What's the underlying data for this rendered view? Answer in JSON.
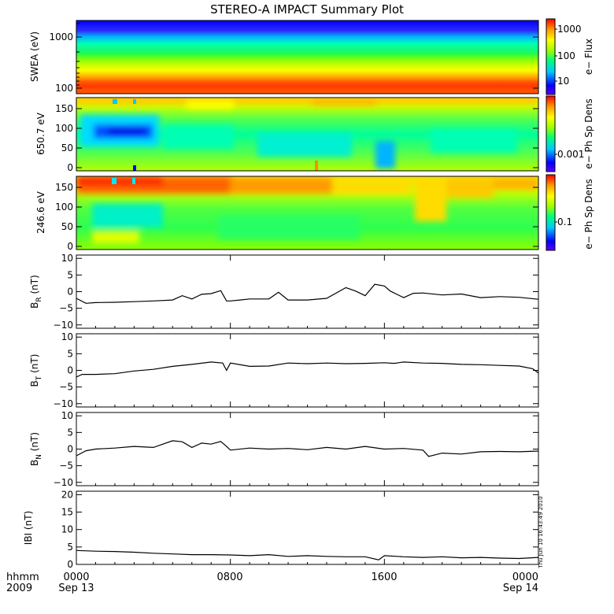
{
  "title": "STEREO-A IMPACT Summary Plot",
  "timestamp": "Thu Jun 10 16:43:49 2010",
  "x_axis": {
    "row1": [
      "hhmm",
      "0000",
      "0800",
      "1600",
      "0000"
    ],
    "row2": [
      "2009",
      "Sep 13",
      "Sep 14"
    ]
  },
  "panels": {
    "swea": {
      "ylabel": "SWEA (eV)",
      "yticks": [
        "1000",
        "100"
      ],
      "colorbar_label": "e− Flux",
      "colorbar_ticks": [
        "1000",
        "100",
        "10"
      ]
    },
    "pa650": {
      "ylabel": "650.7 eV",
      "yticks": [
        "150",
        "100",
        "50",
        "0"
      ],
      "colorbar_label": "e− Ph Sp Dens",
      "colorbar_ticks": [
        "0.001"
      ]
    },
    "pa246": {
      "ylabel": "246.6 eV",
      "yticks": [
        "150",
        "100",
        "50",
        "0"
      ],
      "colorbar_label": "e− Ph Sp Dens",
      "colorbar_ticks": [
        "0.1"
      ]
    }
  },
  "colors": {
    "axis": "#000000",
    "line": "#000000",
    "colormap": [
      "#5a00ff",
      "#0000ff",
      "#00c8ff",
      "#00ff7a",
      "#9bff00",
      "#ffff00",
      "#ff9a00",
      "#ff0000"
    ]
  },
  "chart_data": [
    {
      "type": "heatmap",
      "panel": "swea",
      "ylabel": "SWEA (eV)",
      "yscale": "log",
      "ylim": [
        100,
        1700
      ],
      "x": [
        "Sep 13 00:00",
        "Sep 14 00:00"
      ],
      "bands": [
        {
          "energy_eV": 1500,
          "flux": 8
        },
        {
          "energy_eV": 1000,
          "flux": 15
        },
        {
          "energy_eV": 600,
          "flux": 60
        },
        {
          "energy_eV": 400,
          "flux": 150
        },
        {
          "energy_eV": 250,
          "flux": 600
        },
        {
          "energy_eV": 150,
          "flux": 1500
        },
        {
          "energy_eV": 110,
          "flux": 2000
        }
      ],
      "colorbar": {
        "label": "e− Flux",
        "scale": "log",
        "range": [
          5,
          2500
        ]
      }
    },
    {
      "type": "heatmap",
      "panel": "pa650",
      "ylabel": "650.7 eV",
      "ylim": [
        0,
        180
      ],
      "colorbar": {
        "label": "e− Ph Sp Dens",
        "scale": "log"
      }
    },
    {
      "type": "heatmap",
      "panel": "pa246",
      "ylabel": "246.6 eV",
      "ylim": [
        0,
        180
      ],
      "colorbar": {
        "label": "e− Ph Sp Dens",
        "scale": "log"
      }
    },
    {
      "type": "line",
      "panel": "br",
      "ylabel": "BR (nT)",
      "ylabel_main": "B",
      "ylabel_sub": "R",
      "ylabel_unit": "(nT)",
      "ylim": [
        -11,
        11
      ],
      "yticks": [
        "10",
        "5",
        "0",
        "−5",
        "−10"
      ],
      "x_hours": [
        0,
        0.5,
        1,
        2,
        3,
        4,
        5,
        5.5,
        6,
        6.5,
        7,
        7.5,
        7.8,
        8,
        8.5,
        9,
        10,
        10.5,
        11,
        12,
        13,
        14,
        14.5,
        15,
        15.5,
        16,
        16.3,
        17,
        17.5,
        18,
        19,
        20,
        21,
        22,
        23,
        24
      ],
      "y": [
        -2,
        -3.5,
        -3.3,
        -3.2,
        -3,
        -2.8,
        -2.5,
        -1.2,
        -2.2,
        -0.8,
        -0.6,
        0.3,
        -2.8,
        -2.8,
        -2.5,
        -2.2,
        -2.2,
        -0.2,
        -2.5,
        -2.5,
        -2,
        1.2,
        0.2,
        -1.2,
        2.2,
        1.7,
        0.2,
        -1.8,
        -0.5,
        -0.4,
        -1,
        -0.7,
        -1.8,
        -1.5,
        -1.7,
        -2.3
      ]
    },
    {
      "type": "line",
      "panel": "bt",
      "ylabel": "BT (nT)",
      "ylabel_main": "B",
      "ylabel_sub": "T",
      "ylabel_unit": "(nT)",
      "ylim": [
        -11,
        11
      ],
      "yticks": [
        "10",
        "5",
        "0",
        "−5",
        "−10"
      ],
      "x_hours": [
        0,
        0.3,
        1,
        2,
        3,
        4,
        5,
        6,
        7,
        7.6,
        7.8,
        8,
        9,
        10,
        11,
        12,
        13,
        14,
        15,
        16,
        16.5,
        17,
        18,
        19,
        20,
        21,
        22,
        23,
        23.7,
        24
      ],
      "y": [
        -2,
        -1.2,
        -1.2,
        -1,
        -0.2,
        0.3,
        1.2,
        1.8,
        2.5,
        2.2,
        0,
        2.2,
        1.2,
        1.3,
        2.2,
        2,
        2.2,
        2,
        2.1,
        2.3,
        2.1,
        2.5,
        2.2,
        2.1,
        1.8,
        1.7,
        1.5,
        1.3,
        0.5,
        -0.8
      ]
    },
    {
      "type": "line",
      "panel": "bn",
      "ylabel": "BN (nT)",
      "ylabel_main": "B",
      "ylabel_sub": "N",
      "ylabel_unit": "(nT)",
      "ylim": [
        -11,
        11
      ],
      "yticks": [
        "10",
        "5",
        "0",
        "−5",
        "−10"
      ],
      "x_hours": [
        0,
        0.5,
        1,
        2,
        3,
        4,
        5,
        5.5,
        6,
        6.5,
        7,
        7.5,
        7.8,
        8,
        9,
        10,
        11,
        12,
        13,
        14,
        15,
        16,
        17,
        18,
        18.3,
        19,
        20,
        21,
        22,
        23,
        24
      ],
      "y": [
        -2,
        -0.5,
        0,
        0.3,
        0.8,
        0.5,
        2.5,
        2.2,
        0.5,
        1.8,
        1.5,
        2.3,
        0.8,
        -0.3,
        0.3,
        0,
        0.2,
        -0.2,
        0.5,
        0,
        0.8,
        0,
        0.2,
        -0.3,
        -2.2,
        -1.2,
        -1.5,
        -0.8,
        -0.7,
        -0.8,
        -0.6
      ]
    },
    {
      "type": "line",
      "panel": "bmag",
      "ylabel": "|B| (nT)",
      "ylabel_main": "IBI",
      "ylabel_sub": "",
      "ylabel_unit": "(nT)",
      "ylim": [
        0,
        21
      ],
      "yticks": [
        "20",
        "15",
        "10",
        "5",
        "0"
      ],
      "x_hours": [
        0,
        1,
        2,
        3,
        4,
        5,
        6,
        7,
        8,
        9,
        10,
        11,
        12,
        13,
        14,
        15,
        15.7,
        16,
        17,
        18,
        19,
        20,
        21,
        22,
        23,
        24
      ],
      "y": [
        4,
        3.8,
        3.7,
        3.5,
        3.2,
        3,
        2.8,
        2.8,
        2.7,
        2.5,
        2.8,
        2.3,
        2.5,
        2.3,
        2.2,
        2.2,
        1.3,
        2.5,
        2.2,
        2,
        2.2,
        1.9,
        2,
        1.8,
        1.7,
        2
      ]
    }
  ]
}
